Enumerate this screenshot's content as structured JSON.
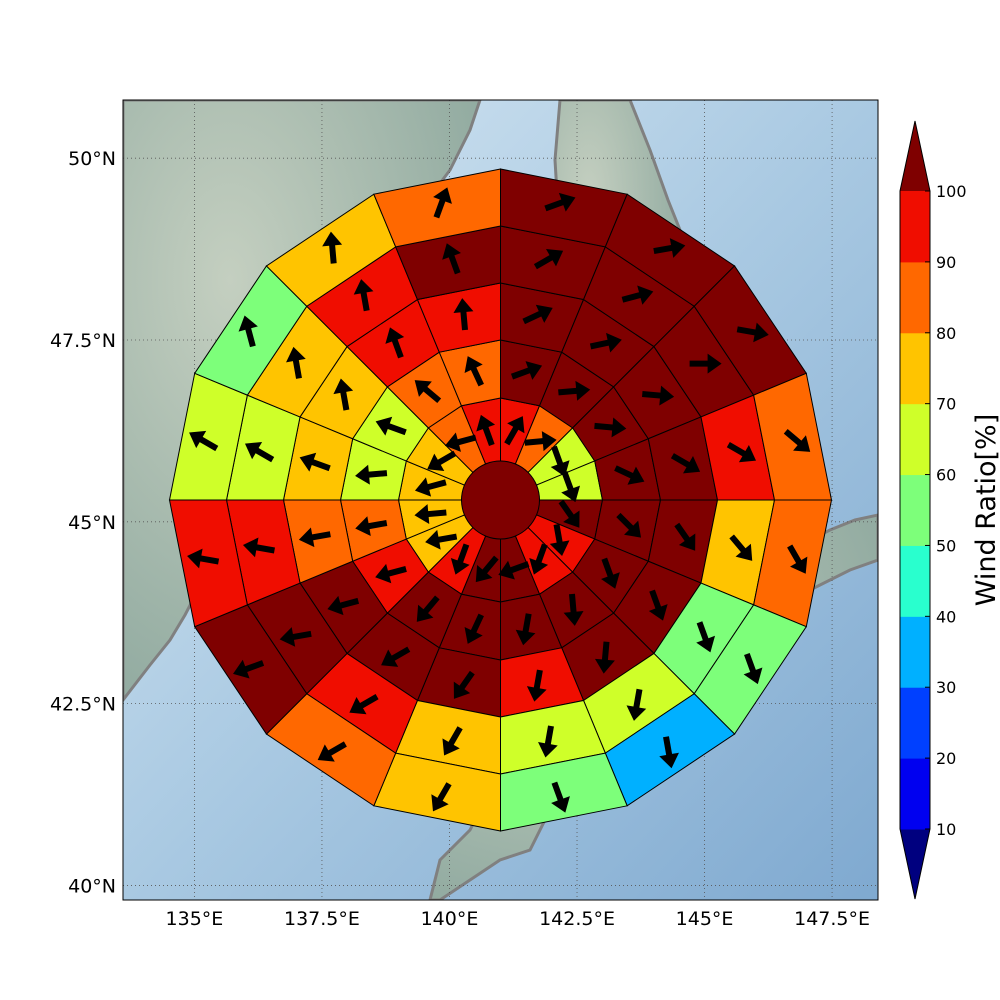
{
  "map": {
    "lon_range": [
      133.6,
      148.4
    ],
    "lat_range": [
      39.8,
      50.8
    ],
    "lon_ticks": [
      "135°E",
      "137.5°E",
      "140°E",
      "142.5°E",
      "145°E",
      "147.5°E"
    ],
    "lon_tick_values": [
      135,
      137.5,
      140,
      142.5,
      145,
      147.5
    ],
    "lat_ticks": [
      "40°N",
      "42.5°N",
      "45°N",
      "47.5°N",
      "50°N"
    ],
    "lat_tick_values": [
      40,
      42.5,
      45,
      47.5,
      50
    ],
    "grid": true,
    "grid_style": "dotted",
    "basemap": "shaded relief"
  },
  "wind_rose": {
    "center": {
      "lon": 141.0,
      "lat": 45.3
    },
    "center_value": 100,
    "sectors": 16,
    "rings": 5,
    "ring_order": "inner to outer",
    "sector_order": "clockwise from north",
    "ratios": [
      [
        92,
        85,
        65,
        65,
        100,
        95,
        95,
        100,
        100,
        95,
        75,
        75,
        75,
        75,
        85,
        92
      ],
      [
        100,
        100,
        100,
        100,
        100,
        100,
        100,
        100,
        100,
        100,
        95,
        85,
        65,
        65,
        85,
        85
      ],
      [
        100,
        100,
        100,
        100,
        100,
        100,
        100,
        95,
        100,
        100,
        100,
        85,
        75,
        75,
        95,
        95
      ],
      [
        100,
        100,
        100,
        92,
        75,
        55,
        65,
        65,
        75,
        95,
        100,
        95,
        65,
        75,
        95,
        100
      ],
      [
        100,
        100,
        100,
        85,
        85,
        55,
        35,
        55,
        75,
        85,
        100,
        95,
        65,
        55,
        75,
        85
      ]
    ],
    "arrow_dirs": [
      [
        30,
        85,
        160,
        160,
        145,
        170,
        200,
        250,
        220,
        200,
        260,
        265,
        255,
        240,
        255,
        340
      ],
      [
        70,
        85,
        95,
        115,
        135,
        160,
        175,
        190,
        205,
        220,
        255,
        260,
        265,
        290,
        310,
        335
      ],
      [
        65,
        78,
        95,
        120,
        145,
        160,
        185,
        190,
        215,
        240,
        255,
        260,
        290,
        350,
        340,
        355
      ],
      [
        60,
        75,
        90,
        120,
        140,
        160,
        190,
        190,
        210,
        240,
        260,
        280,
        300,
        350,
        350,
        340
      ],
      [
        70,
        80,
        100,
        130,
        150,
        160,
        170,
        160,
        210,
        240,
        250,
        280,
        300,
        345,
        355,
        20
      ]
    ]
  },
  "colorbar": {
    "label": "Wind Ratio[%]",
    "tick_labels": [
      "10",
      "20",
      "30",
      "40",
      "50",
      "60",
      "70",
      "80",
      "90",
      "100"
    ],
    "bounds": [
      10,
      20,
      30,
      40,
      50,
      60,
      70,
      80,
      90,
      100
    ],
    "under_color": "#00007f",
    "over_color": "#7f0000",
    "colors": [
      "#0000f0",
      "#0040ff",
      "#00b0ff",
      "#29ffce",
      "#7dff7a",
      "#cfff29",
      "#ffc400",
      "#ff6800",
      "#f00d00"
    ]
  }
}
